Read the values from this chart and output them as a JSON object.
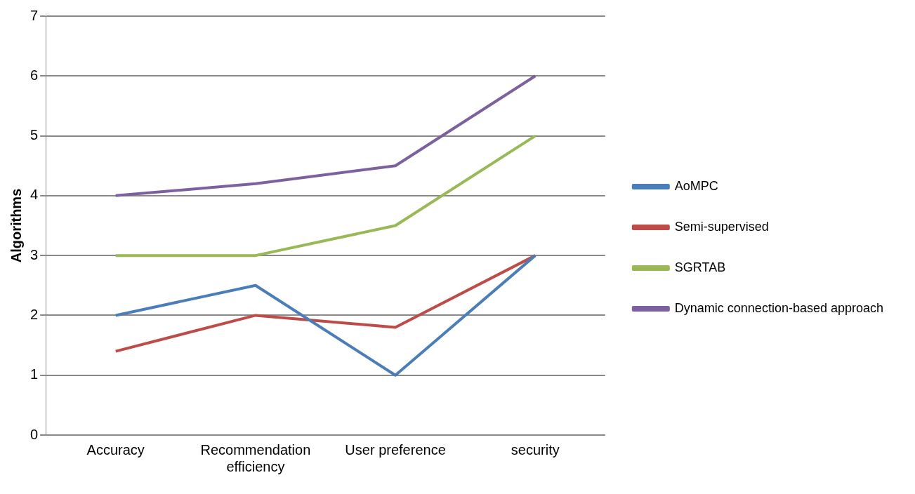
{
  "chart_data": {
    "type": "line",
    "ylabel": "Algorithms",
    "categories": [
      "Accuracy",
      [
        "Recommendation",
        "efficiency"
      ],
      "User preference",
      "security"
    ],
    "series": [
      {
        "name": "AoMPC",
        "color": "#4a7ebb",
        "values": [
          2,
          2.5,
          1,
          3
        ]
      },
      {
        "name": "Semi-supervised",
        "color": "#be4b48",
        "values": [
          1.4,
          2,
          1.8,
          3
        ]
      },
      {
        "name": "SGRTAB",
        "color": "#98b954",
        "values": [
          3,
          3,
          3.5,
          5
        ]
      },
      {
        "name": "Dynamic connection-based approach",
        "color": "#7d60a0",
        "values": [
          4,
          4.2,
          4.5,
          6
        ]
      }
    ],
    "ylim": [
      0,
      7
    ],
    "yticks": [
      0,
      1,
      2,
      3,
      4,
      5,
      6,
      7
    ],
    "grid": "y",
    "legend": "right"
  }
}
